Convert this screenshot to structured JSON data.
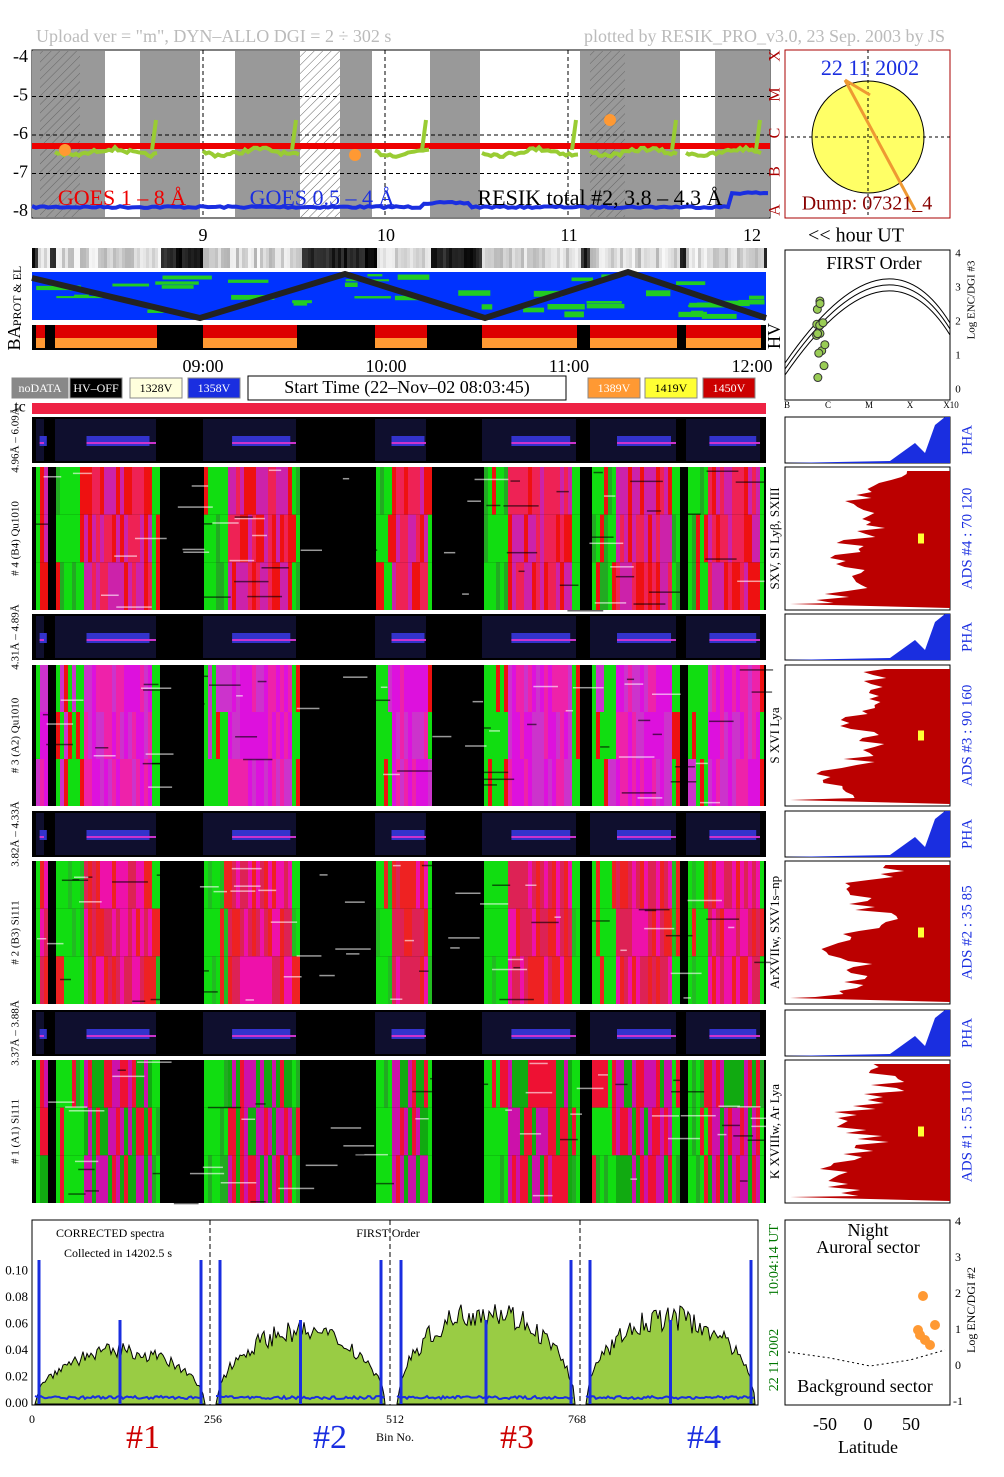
{
  "header": {
    "left": "Upload ver = \"m\", DYN–ALLO DGI =   2 ÷ 302 s",
    "right": "plotted by RESIK_PRO_v3.0, 23 Sep. 2003 by JS"
  },
  "goes": {
    "yticks": [
      "-4",
      "-5",
      "-6",
      "-7",
      "-8"
    ],
    "class_labels": [
      "X",
      "M",
      "C",
      "B",
      "A"
    ],
    "legend": [
      "GOES 1 – 8 Å",
      "GOES 0.5 – 4 Å",
      "RESIK total #2, 3.8 – 4.3 Å"
    ],
    "hours": [
      "9",
      "10",
      "11",
      "12"
    ],
    "hour_unit": "<< hour UT"
  },
  "sun": {
    "date": "22 11 2002",
    "dump": "Dump: 07321_4"
  },
  "status": {
    "labels": [
      "PROT & EL",
      "BA",
      "HV"
    ],
    "times": [
      "09:00",
      "10:00",
      "11:00",
      "12:00"
    ],
    "legend_left": [
      "noDATA",
      "HV–OFF",
      "1328V",
      "1358V"
    ],
    "start_time": "Start Time (22–Nov–02 08:03:45)",
    "legend_right": [
      "1389V",
      "1419V",
      "1450V"
    ],
    "tc": "tc"
  },
  "first_order": {
    "title": "FIRST Order",
    "yticks": [
      "0",
      "1",
      "2",
      "3",
      "4"
    ],
    "y_label": "Log ENC/DGI #3",
    "xticks": [
      "B",
      "C",
      "M",
      "X",
      "X10"
    ]
  },
  "channels": [
    {
      "name": "# 4 (B4) Qu1010",
      "range": "4.96Å – 6.09Å",
      "pha": "PHA",
      "ads": "ADS #4 :   70 120",
      "lines": "SXV, SI Lyβ, SXIII"
    },
    {
      "name": "# 3 (A2) Qu1010",
      "range": "4.31Å – 4.89Å",
      "pha": "PHA",
      "ads": "ADS #3 :   90 160",
      "lines": "S XVI Lya"
    },
    {
      "name": "# 2 (B3) Si111",
      "range": "3.82Å – 4.33Å",
      "pha": "PHA",
      "ads": "ADS #2 :   35 85",
      "lines": "ArXVIIw, SXV1s–np"
    },
    {
      "name": "# 1 (A1) Si111",
      "range": "3.37Å – 3.88Å",
      "pha": "PHA",
      "ads": "ADS #1 :   55 110",
      "lines": "K XVIIIw, Ar Lya"
    }
  ],
  "spectrum": {
    "yticks": [
      "0.00",
      "0.02",
      "0.04",
      "0.06",
      "0.08",
      "0.10"
    ],
    "note1": "CORRECTED spectra",
    "note2": "Collected in 14202.5 s",
    "title": "FIRST Order",
    "time": "10:04:14 UT",
    "date": "22 11 2002",
    "xticks": [
      "0",
      "256",
      "512",
      "768"
    ],
    "x_label": "Bin No.",
    "detectors": [
      "#1",
      "#2",
      "#3",
      "#4"
    ]
  },
  "latitude": {
    "top1": "Night",
    "top2": "Auroral sector",
    "bottom": "Background sector",
    "yticks": [
      "-1",
      "0",
      "1",
      "2",
      "3",
      "4"
    ],
    "y_label": "Log ENC/DGI #2",
    "xticks": [
      "-50",
      "0",
      "50"
    ],
    "x_label": "Latitude"
  }
}
